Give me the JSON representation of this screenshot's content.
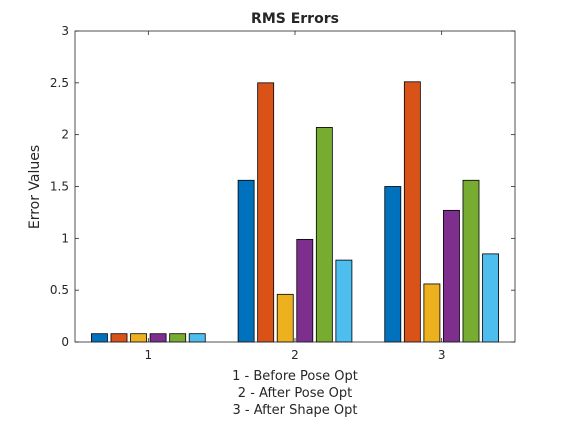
{
  "chart_data": {
    "type": "bar",
    "title": "RMS Errors",
    "ylabel": "Error Values",
    "xlabel_lines": [
      "1 - Before Pose Opt",
      "2 - After Pose Opt",
      "3 - After Shape Opt"
    ],
    "categories": [
      "1",
      "2",
      "3"
    ],
    "ylim": [
      0,
      3
    ],
    "yticks": [
      0,
      0.5,
      1,
      1.5,
      2,
      2.5,
      3
    ],
    "ytick_labels": [
      "0",
      "0.5",
      "1",
      "1.5",
      "2",
      "2.5",
      "3"
    ],
    "grid": false,
    "legend": "none",
    "series": [
      {
        "color": "#0072BD",
        "values": [
          0.08,
          1.56,
          1.5
        ]
      },
      {
        "color": "#D95319",
        "values": [
          0.08,
          2.5,
          2.51
        ]
      },
      {
        "color": "#EDB120",
        "values": [
          0.08,
          0.46,
          0.56
        ]
      },
      {
        "color": "#7E2F8E",
        "values": [
          0.08,
          0.99,
          1.27
        ]
      },
      {
        "color": "#77AC30",
        "values": [
          0.08,
          2.07,
          1.56
        ]
      },
      {
        "color": "#4DBEEE",
        "values": [
          0.08,
          0.79,
          0.85
        ]
      }
    ]
  }
}
